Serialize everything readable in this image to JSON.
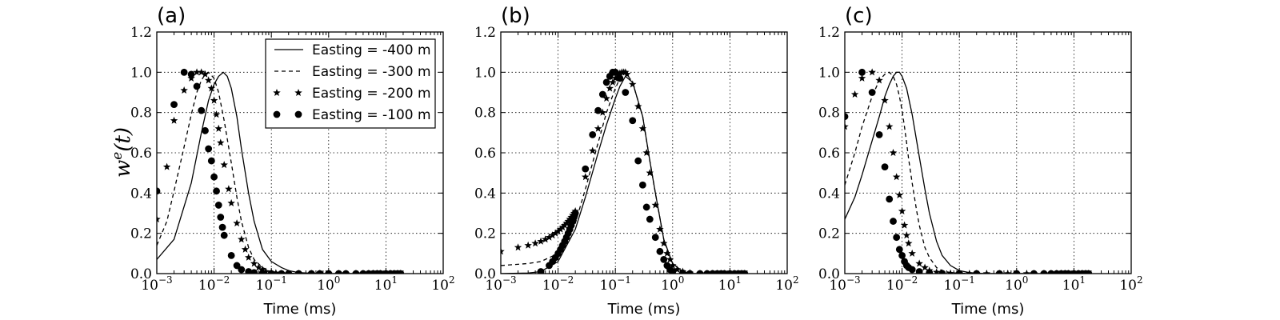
{
  "figure": {
    "ylabel_main": "w",
    "ylabel_sup": "e",
    "ylabel_tail": "(t)",
    "xlabel": "Time (ms)",
    "y_tick_labels": [
      "0.0",
      "0.2",
      "0.4",
      "0.6",
      "0.8",
      "1.0",
      "1.2"
    ],
    "x_tick_labels": [
      {
        "base": "10",
        "exp": "−3"
      },
      {
        "base": "10",
        "exp": "−2"
      },
      {
        "base": "10",
        "exp": "−1"
      },
      {
        "base": "10",
        "exp": "0"
      },
      {
        "base": "10",
        "exp": "1"
      },
      {
        "base": "10",
        "exp": "2"
      }
    ]
  },
  "legend": {
    "placement": "top-right of panel (a)",
    "entries": [
      {
        "label": "Easting = -400 m",
        "style": "solid"
      },
      {
        "label": "Easting = -300 m",
        "style": "dashed"
      },
      {
        "label": "Easting = -200 m",
        "style": "star"
      },
      {
        "label": "Easting = -100 m",
        "style": "circle"
      }
    ]
  },
  "colors": {
    "ink": "#000000",
    "background": "#ffffff"
  },
  "chart_data": [
    {
      "type": "line",
      "panel_label": "(a)",
      "xlabel": "Time (ms)",
      "ylabel": "w^e(t)",
      "x_scale": "log",
      "xlim": [
        0.001,
        100
      ],
      "ylim": [
        0,
        1.2
      ],
      "grid": true,
      "series": [
        {
          "name": "Easting = -400 m",
          "style": "solid",
          "x": [
            0.001,
            0.002,
            0.004,
            0.006,
            0.008,
            0.01,
            0.012,
            0.0145,
            0.017,
            0.02,
            0.025,
            0.03,
            0.04,
            0.05,
            0.07,
            0.1,
            0.15,
            0.2,
            0.3,
            0.5,
            1,
            2,
            5,
            10,
            18
          ],
          "y": [
            0.07,
            0.17,
            0.45,
            0.7,
            0.86,
            0.94,
            0.98,
            1.0,
            0.98,
            0.92,
            0.78,
            0.62,
            0.4,
            0.26,
            0.12,
            0.06,
            0.03,
            0.015,
            0.005,
            0.002,
            0.0,
            0.0,
            0.0,
            0.0,
            0.0
          ]
        },
        {
          "name": "Easting = -300 m",
          "style": "dashed",
          "x": [
            0.001,
            0.0015,
            0.002,
            0.003,
            0.004,
            0.005,
            0.006,
            0.007,
            0.008,
            0.01,
            0.012,
            0.015,
            0.02,
            0.025,
            0.03,
            0.04,
            0.05,
            0.07,
            0.1,
            0.15,
            0.2,
            0.3,
            0.5,
            1,
            18
          ],
          "y": [
            0.14,
            0.26,
            0.41,
            0.63,
            0.79,
            0.9,
            0.96,
            0.99,
            1.0,
            0.97,
            0.9,
            0.76,
            0.55,
            0.38,
            0.26,
            0.13,
            0.07,
            0.03,
            0.01,
            0.005,
            0.002,
            0.0,
            0.0,
            0.0,
            0.0
          ]
        },
        {
          "name": "Easting = -200 m",
          "style": "star",
          "x": [
            0.001,
            0.0015,
            0.002,
            0.003,
            0.004,
            0.005,
            0.006,
            0.007,
            0.008,
            0.009,
            0.01,
            0.011,
            0.012,
            0.013,
            0.015,
            0.018,
            0.02,
            0.025,
            0.03,
            0.035,
            0.04,
            0.05,
            0.06,
            0.07,
            0.08,
            0.1,
            0.12,
            0.15,
            0.2,
            0.3,
            0.5,
            0.7,
            1,
            1.5,
            2,
            3,
            4,
            5,
            6,
            7,
            8,
            10,
            12,
            14,
            16,
            18
          ],
          "y": [
            0.27,
            0.53,
            0.76,
            0.91,
            0.97,
            1.0,
            1.0,
            0.99,
            0.96,
            0.92,
            0.86,
            0.79,
            0.72,
            0.65,
            0.54,
            0.42,
            0.35,
            0.25,
            0.17,
            0.12,
            0.08,
            0.05,
            0.03,
            0.02,
            0.01,
            0.005,
            0.003,
            0.0,
            0.0,
            0.0,
            0.0,
            0.0,
            0.0,
            0.0,
            0.0,
            0.0,
            0.0,
            0.0,
            0.0,
            0.0,
            0.0,
            0.0,
            0.0,
            0.0,
            0.0,
            0.0
          ]
        },
        {
          "name": "Easting = -100 m",
          "style": "circle",
          "x": [
            0.001,
            0.002,
            0.003,
            0.004,
            0.005,
            0.006,
            0.007,
            0.008,
            0.009,
            0.01,
            0.011,
            0.012,
            0.013,
            0.014,
            0.015,
            0.02,
            0.025,
            0.03,
            0.04,
            0.05,
            0.07,
            0.1,
            0.15,
            0.2,
            0.3,
            0.5,
            0.7,
            1,
            1.5,
            2,
            3,
            4,
            5,
            6,
            7,
            8,
            10,
            12,
            14,
            16,
            18
          ],
          "y": [
            0.41,
            0.84,
            1.0,
            0.99,
            0.93,
            0.81,
            0.71,
            0.62,
            0.56,
            0.48,
            0.41,
            0.34,
            0.28,
            0.23,
            0.19,
            0.09,
            0.04,
            0.02,
            0.01,
            0.005,
            0.002,
            0.0,
            0.0,
            0.0,
            0.0,
            0.0,
            0.0,
            0.0,
            0.0,
            0.0,
            0.0,
            0.0,
            0.0,
            0.0,
            0.0,
            0.0,
            0.0,
            0.0,
            0.0,
            0.0,
            0.0
          ]
        }
      ]
    },
    {
      "type": "line",
      "panel_label": "(b)",
      "xlabel": "Time (ms)",
      "x_scale": "log",
      "xlim": [
        0.001,
        100
      ],
      "ylim": [
        0,
        1.2
      ],
      "grid": true,
      "series": [
        {
          "name": "Easting = -400 m",
          "style": "solid",
          "x": [
            0.001,
            0.003,
            0.005,
            0.01,
            0.02,
            0.03,
            0.05,
            0.07,
            0.1,
            0.12,
            0.15,
            0.2,
            0.3,
            0.4,
            0.5,
            0.7,
            1,
            1.5,
            2,
            5,
            18
          ],
          "y": [
            0.0,
            0.003,
            0.01,
            0.06,
            0.22,
            0.38,
            0.6,
            0.74,
            0.87,
            0.93,
            0.98,
            0.95,
            0.78,
            0.56,
            0.4,
            0.17,
            0.05,
            0.01,
            0.0,
            0.0,
            0.0
          ]
        },
        {
          "name": "Easting = -300 m",
          "style": "dashed",
          "x": [
            0.001,
            0.003,
            0.005,
            0.01,
            0.02,
            0.03,
            0.05,
            0.07,
            0.1,
            0.12,
            0.15,
            0.2,
            0.3,
            0.4,
            0.5,
            0.7,
            1,
            1.5,
            2,
            5,
            18
          ],
          "y": [
            0.04,
            0.05,
            0.06,
            0.1,
            0.25,
            0.42,
            0.65,
            0.8,
            0.92,
            0.97,
            1.0,
            0.95,
            0.78,
            0.56,
            0.4,
            0.17,
            0.05,
            0.01,
            0.0,
            0.0,
            0.0
          ]
        },
        {
          "name": "Easting = -200 m",
          "style": "star",
          "x": [
            0.001,
            0.002,
            0.003,
            0.004,
            0.005,
            0.006,
            0.007,
            0.008,
            0.009,
            0.01,
            0.011,
            0.012,
            0.013,
            0.014,
            0.015,
            0.016,
            0.017,
            0.018,
            0.019,
            0.02,
            0.03,
            0.04,
            0.05,
            0.06,
            0.07,
            0.08,
            0.09,
            0.1,
            0.11,
            0.12,
            0.13,
            0.14,
            0.15,
            0.16,
            0.2,
            0.25,
            0.3,
            0.35,
            0.4,
            0.5,
            0.6,
            0.7,
            0.8,
            0.9,
            1.0,
            1.2,
            1.5,
            2,
            3,
            4,
            5,
            6,
            7,
            8,
            10,
            12,
            14,
            16,
            18
          ],
          "y": [
            0.11,
            0.13,
            0.14,
            0.15,
            0.16,
            0.17,
            0.18,
            0.19,
            0.2,
            0.21,
            0.22,
            0.23,
            0.24,
            0.25,
            0.26,
            0.27,
            0.28,
            0.29,
            0.3,
            0.31,
            0.48,
            0.61,
            0.72,
            0.8,
            0.87,
            0.92,
            0.95,
            0.97,
            0.985,
            0.995,
            1.0,
            1.0,
            1.0,
            0.99,
            0.94,
            0.83,
            0.72,
            0.6,
            0.5,
            0.34,
            0.22,
            0.15,
            0.1,
            0.07,
            0.04,
            0.02,
            0.01,
            0.003,
            0.0,
            0.0,
            0.0,
            0.0,
            0.0,
            0.0,
            0.0,
            0.0,
            0.0,
            0.0,
            0.0
          ]
        },
        {
          "name": "Easting = -100 m",
          "style": "circle",
          "x": [
            0.005,
            0.007,
            0.008,
            0.009,
            0.01,
            0.011,
            0.012,
            0.013,
            0.014,
            0.015,
            0.016,
            0.017,
            0.018,
            0.019,
            0.02,
            0.03,
            0.04,
            0.05,
            0.06,
            0.07,
            0.08,
            0.09,
            0.1,
            0.12,
            0.15,
            0.2,
            0.25,
            0.3,
            0.35,
            0.4,
            0.5,
            0.6,
            0.7,
            0.8,
            0.9,
            1.0,
            1.5,
            2,
            3,
            4,
            5,
            6,
            7,
            8,
            10,
            12,
            14,
            16,
            18
          ],
          "y": [
            0.01,
            0.04,
            0.06,
            0.08,
            0.1,
            0.12,
            0.14,
            0.16,
            0.18,
            0.2,
            0.22,
            0.24,
            0.26,
            0.28,
            0.3,
            0.52,
            0.69,
            0.81,
            0.89,
            0.95,
            0.98,
            1.0,
            1.0,
            0.97,
            0.9,
            0.76,
            0.56,
            0.44,
            0.33,
            0.27,
            0.18,
            0.11,
            0.07,
            0.04,
            0.02,
            0.01,
            0.003,
            0.0,
            0.0,
            0.0,
            0.0,
            0.0,
            0.0,
            0.0,
            0.0,
            0.0,
            0.0,
            0.0,
            0.0
          ]
        }
      ]
    },
    {
      "type": "line",
      "panel_label": "(c)",
      "xlabel": "Time (ms)",
      "x_scale": "log",
      "xlim": [
        0.001,
        100
      ],
      "ylim": [
        0,
        1.2
      ],
      "grid": true,
      "series": [
        {
          "name": "Easting = -400 m",
          "style": "solid",
          "x": [
            0.001,
            0.0015,
            0.002,
            0.003,
            0.004,
            0.005,
            0.006,
            0.007,
            0.008,
            0.009,
            0.01,
            0.012,
            0.015,
            0.02,
            0.025,
            0.03,
            0.04,
            0.05,
            0.07,
            0.1,
            0.15,
            0.2,
            0.3,
            0.5,
            1,
            18
          ],
          "y": [
            0.27,
            0.38,
            0.49,
            0.66,
            0.78,
            0.88,
            0.94,
            0.98,
            1.0,
            1.0,
            0.98,
            0.92,
            0.79,
            0.58,
            0.42,
            0.3,
            0.16,
            0.09,
            0.04,
            0.015,
            0.005,
            0.002,
            0.0,
            0.0,
            0.0,
            0.0
          ]
        },
        {
          "name": "Easting = -300 m",
          "style": "dashed",
          "x": [
            0.001,
            0.0015,
            0.002,
            0.003,
            0.004,
            0.005,
            0.006,
            0.007,
            0.008,
            0.009,
            0.01,
            0.011,
            0.012,
            0.013,
            0.015,
            0.018,
            0.02,
            0.025,
            0.03,
            0.04,
            0.05,
            0.07,
            0.1,
            0.2,
            0.5,
            18
          ],
          "y": [
            0.44,
            0.6,
            0.73,
            0.88,
            0.96,
            0.99,
            1.0,
            0.98,
            0.94,
            0.88,
            0.81,
            0.73,
            0.65,
            0.57,
            0.45,
            0.31,
            0.24,
            0.13,
            0.08,
            0.03,
            0.015,
            0.005,
            0.002,
            0.0,
            0.0,
            0.0
          ]
        },
        {
          "name": "Easting = -200 m",
          "style": "star",
          "x": [
            0.001,
            0.0015,
            0.002,
            0.003,
            0.004,
            0.005,
            0.006,
            0.007,
            0.008,
            0.009,
            0.01,
            0.011,
            0.012,
            0.013,
            0.015,
            0.02,
            0.025,
            0.03,
            0.04,
            0.05,
            0.07,
            0.1,
            0.15,
            0.2,
            0.3,
            0.5,
            0.7,
            1,
            1.5,
            2,
            3,
            4,
            5,
            6,
            7,
            8,
            10,
            12,
            14,
            16,
            18
          ],
          "y": [
            0.73,
            0.89,
            0.97,
            1.0,
            0.96,
            0.86,
            0.73,
            0.6,
            0.48,
            0.39,
            0.31,
            0.24,
            0.19,
            0.15,
            0.1,
            0.05,
            0.03,
            0.015,
            0.007,
            0.003,
            0.001,
            0.0,
            0.0,
            0.0,
            0.0,
            0.0,
            0.0,
            0.0,
            0.0,
            0.0,
            0.0,
            0.0,
            0.0,
            0.0,
            0.0,
            0.0,
            0.0,
            0.0,
            0.0,
            0.0,
            0.0
          ]
        },
        {
          "name": "Easting = -100 m",
          "style": "circle",
          "x": [
            0.001,
            0.002,
            0.003,
            0.004,
            0.005,
            0.006,
            0.007,
            0.008,
            0.009,
            0.01,
            0.011,
            0.012,
            0.013,
            0.015,
            0.02,
            0.03,
            0.05,
            0.1,
            0.2,
            0.5,
            1,
            2,
            3,
            4,
            5,
            6,
            7,
            8,
            10,
            12,
            14,
            16,
            18
          ],
          "y": [
            0.78,
            1.0,
            0.9,
            0.69,
            0.53,
            0.37,
            0.26,
            0.18,
            0.12,
            0.09,
            0.06,
            0.04,
            0.03,
            0.02,
            0.01,
            0.004,
            0.001,
            0.0,
            0.0,
            0.0,
            0.0,
            0.0,
            0.0,
            0.0,
            0.0,
            0.0,
            0.0,
            0.0,
            0.0,
            0.0,
            0.0,
            0.0,
            0.0
          ]
        }
      ]
    }
  ]
}
